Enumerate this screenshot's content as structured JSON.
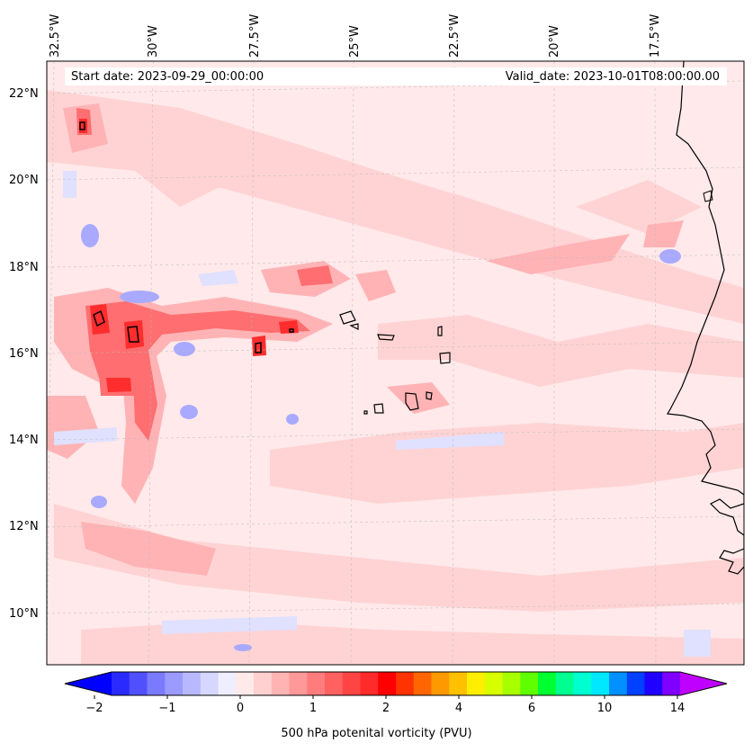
{
  "header": {
    "start_date": "Start date: 2023-09-29_00:00:00",
    "valid_date": "Valid_date: 2023-10-01T08:00:00.00"
  },
  "axes": {
    "lon_labels": [
      "32.5°W",
      "30°W",
      "27.5°W",
      "25°W",
      "22.5°W",
      "20°W",
      "17.5°W"
    ],
    "lat_labels": [
      "22°N",
      "20°N",
      "18°N",
      "16°N",
      "14°N",
      "12°N",
      "10°N"
    ]
  },
  "colorbar": {
    "title": "500 hPa potenital vorticity (PVU)",
    "tick_labels": [
      "−2",
      "−1",
      "0",
      "1",
      "2",
      "4",
      "6",
      "10",
      "14"
    ],
    "colors": [
      "#0000ff",
      "#2a2aff",
      "#5050ff",
      "#7a7aff",
      "#9a9aff",
      "#b8b8ff",
      "#d6d6ff",
      "#eeeeff",
      "#ffe9e9",
      "#ffd0d0",
      "#ffb4b4",
      "#ff9898",
      "#ff7c7c",
      "#ff6060",
      "#ff4444",
      "#ff2a2a",
      "#ff0000",
      "#ff3300",
      "#ff6600",
      "#ff9900",
      "#ffc000",
      "#ffee00",
      "#d8ff00",
      "#a8ff00",
      "#60ff00",
      "#00ff30",
      "#00ff90",
      "#00ffd0",
      "#00e8ff",
      "#0090ff",
      "#0040ff",
      "#2000ff",
      "#8000ff",
      "#c000ff"
    ]
  },
  "colors": {
    "background": "#ffe9ea",
    "coast": "#000000"
  }
}
